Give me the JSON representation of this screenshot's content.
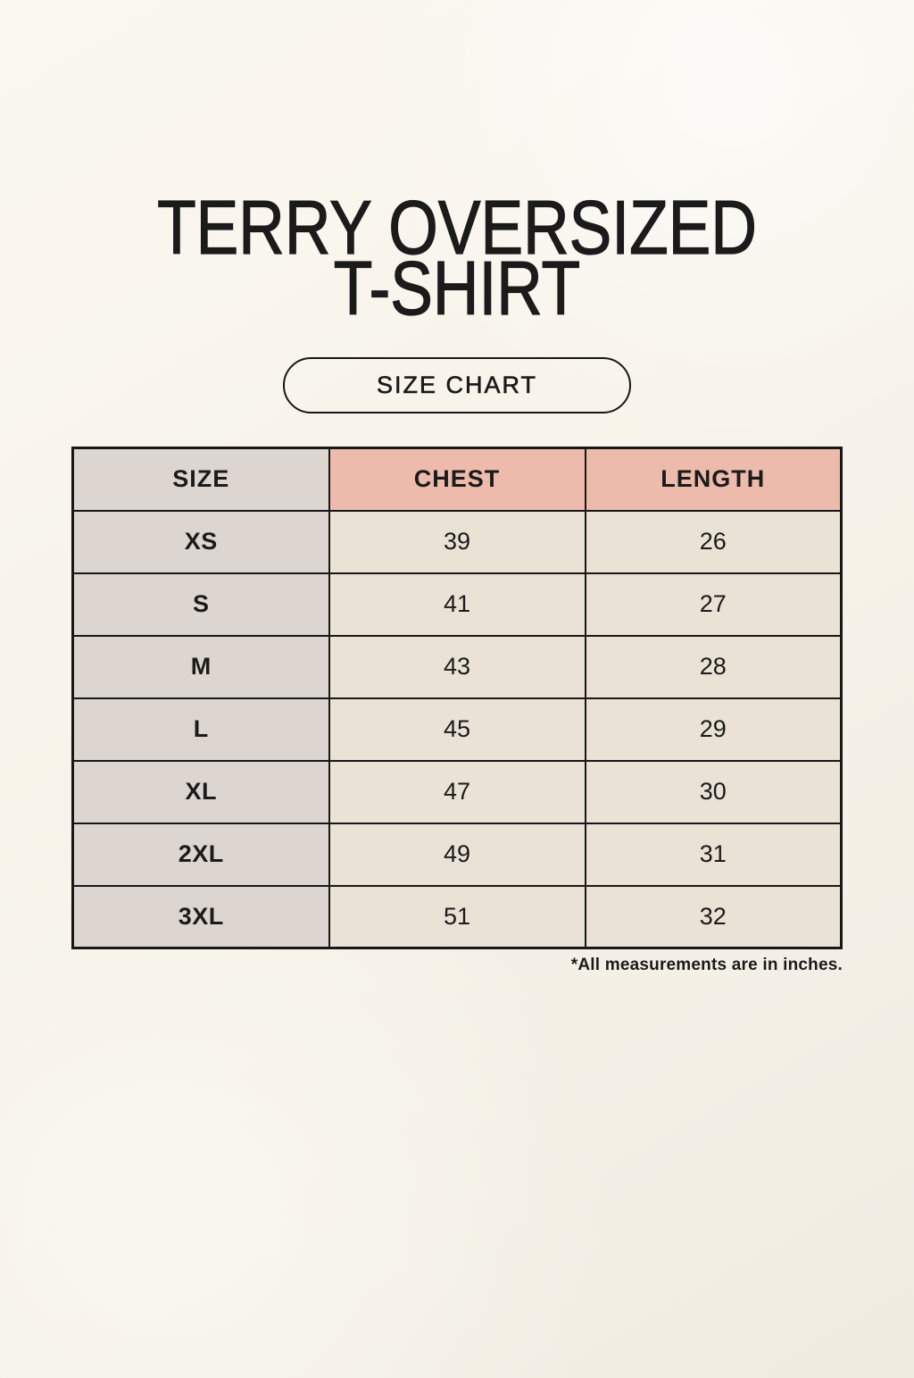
{
  "title": {
    "line1": "TERRY OVERSIZED",
    "line2": "T-SHIRT"
  },
  "badge": {
    "label": "SIZE CHART"
  },
  "chart_data": {
    "type": "table",
    "title": "TERRY OVERSIZED T-SHIRT",
    "subtitle": "SIZE CHART",
    "columns": [
      "SIZE",
      "CHEST",
      "LENGTH"
    ],
    "rows": [
      [
        "XS",
        "39",
        "26"
      ],
      [
        "S",
        "41",
        "27"
      ],
      [
        "M",
        "43",
        "28"
      ],
      [
        "L",
        "45",
        "29"
      ],
      [
        "XL",
        "47",
        "30"
      ],
      [
        "2XL",
        "49",
        "31"
      ],
      [
        "3XL",
        "51",
        "32"
      ]
    ],
    "note": "*All measurements are in inches."
  },
  "colors": {
    "page_bg": "#f6f2e9",
    "text": "#1b1b1b",
    "border": "#171717",
    "size_col_bg": "#ddd6d0",
    "measure_header_bg": "#ecbbac",
    "data_cell_bg": "#e9e2d5"
  }
}
